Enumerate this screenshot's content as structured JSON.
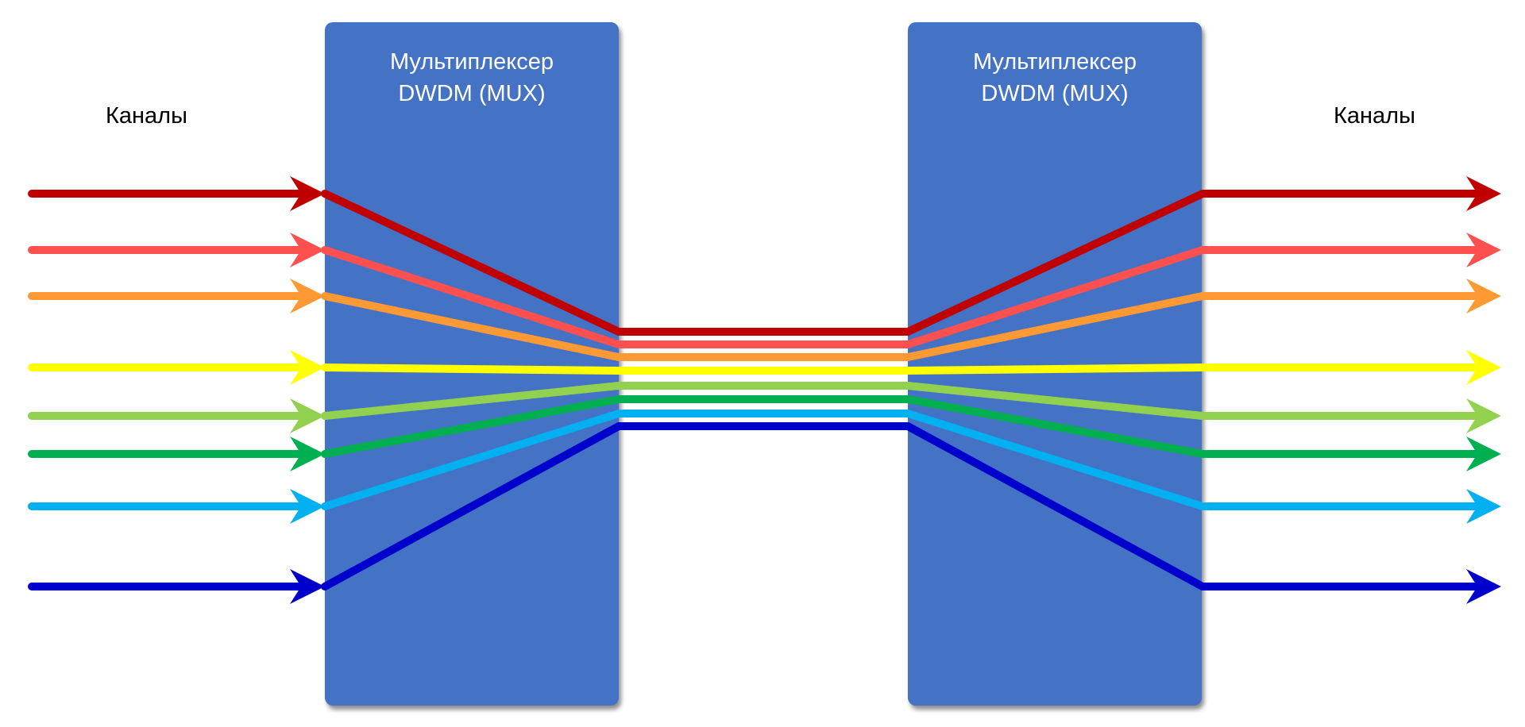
{
  "colors": {
    "mux_fill": "#4472C4",
    "channels": [
      "#C00000",
      "#FF5050",
      "#FF9933",
      "#FFFF00",
      "#92D050",
      "#00B050",
      "#00B0F0",
      "#0000CC"
    ]
  },
  "left_mux": {
    "line1": "Мультиплексер",
    "line2": "DWDM (MUX)"
  },
  "right_mux": {
    "line1": "Мультиплексер",
    "line2": "DWDM (MUX)"
  },
  "left_label": "Каналы",
  "right_label": "Каналы"
}
